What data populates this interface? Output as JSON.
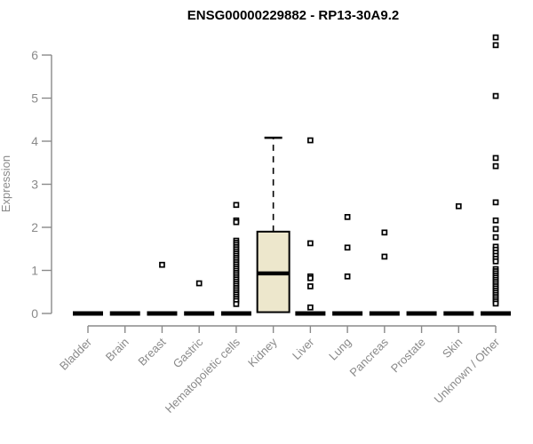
{
  "chart_data": {
    "type": "boxplot",
    "title": "ENSG00000229882 - RP13-30A9.2",
    "xlabel": "",
    "ylabel": "Expression",
    "ylim": [
      0,
      6.5
    ],
    "yticks": [
      0,
      1,
      2,
      3,
      4,
      5,
      6
    ],
    "grid": false,
    "legend": false,
    "categories": [
      "Bladder",
      "Brain",
      "Breast",
      "Gastric",
      "Hematopoietic cells",
      "Kidney",
      "Liver",
      "Lung",
      "Pancreas",
      "Prostate",
      "Skin",
      "Unknown / Other"
    ],
    "boxes": [
      {
        "category": "Bladder",
        "q1": 0,
        "median": 0,
        "q3": 0,
        "whisker_low": 0,
        "whisker_high": 0,
        "outliers": []
      },
      {
        "category": "Brain",
        "q1": 0,
        "median": 0,
        "q3": 0,
        "whisker_low": 0,
        "whisker_high": 0,
        "outliers": []
      },
      {
        "category": "Breast",
        "q1": 0,
        "median": 0,
        "q3": 0,
        "whisker_low": 0,
        "whisker_high": 0,
        "outliers": [
          1.13
        ]
      },
      {
        "category": "Gastric",
        "q1": 0,
        "median": 0,
        "q3": 0,
        "whisker_low": 0,
        "whisker_high": 0,
        "outliers": [
          0.7
        ]
      },
      {
        "category": "Hematopoietic cells",
        "q1": 0,
        "median": 0,
        "q3": 0,
        "whisker_low": 0,
        "whisker_high": 0,
        "outliers": [
          2.52,
          2.16,
          2.12,
          1.69,
          1.64,
          1.59,
          1.54,
          1.49,
          1.44,
          1.39,
          1.34,
          1.29,
          1.24,
          1.19,
          1.14,
          1.09,
          1.04,
          0.99,
          0.94,
          0.89,
          0.84,
          0.79,
          0.74,
          0.69,
          0.64,
          0.59,
          0.54,
          0.49,
          0.44,
          0.39,
          0.34,
          0.29,
          0.22
        ]
      },
      {
        "category": "Kidney",
        "q1": 0.03,
        "median": 0.93,
        "q3": 1.9,
        "whisker_low": 0.03,
        "whisker_high": 4.08,
        "outliers": []
      },
      {
        "category": "Liver",
        "q1": 0,
        "median": 0,
        "q3": 0,
        "whisker_low": 0,
        "whisker_high": 0,
        "outliers": [
          4.02,
          1.63,
          0.86,
          0.82,
          0.63,
          0.14
        ]
      },
      {
        "category": "Lung",
        "q1": 0,
        "median": 0,
        "q3": 0,
        "whisker_low": 0,
        "whisker_high": 0,
        "outliers": [
          2.24,
          1.53,
          0.86
        ]
      },
      {
        "category": "Pancreas",
        "q1": 0,
        "median": 0,
        "q3": 0,
        "whisker_low": 0,
        "whisker_high": 0,
        "outliers": [
          1.88,
          1.32
        ]
      },
      {
        "category": "Prostate",
        "q1": 0,
        "median": 0,
        "q3": 0,
        "whisker_low": 0,
        "whisker_high": 0,
        "outliers": []
      },
      {
        "category": "Skin",
        "q1": 0,
        "median": 0,
        "q3": 0,
        "whisker_low": 0,
        "whisker_high": 0,
        "outliers": [
          2.49
        ]
      },
      {
        "category": "Unknown / Other",
        "q1": 0,
        "median": 0,
        "q3": 0,
        "whisker_low": 0,
        "whisker_high": 0,
        "outliers": [
          6.41,
          6.23,
          5.05,
          3.61,
          3.42,
          2.58,
          2.16,
          1.96,
          1.77,
          1.55,
          1.48,
          1.41,
          1.34,
          1.27,
          1.21,
          1.03,
          0.98,
          0.93,
          0.88,
          0.83,
          0.78,
          0.73,
          0.68,
          0.63,
          0.58,
          0.53,
          0.48,
          0.43,
          0.38,
          0.33,
          0.28,
          0.23
        ]
      }
    ]
  },
  "colors": {
    "background": "#FFFFFF",
    "title_text": "#000000",
    "axis": "#8A8A8A",
    "axis_text": "#8A8A8A",
    "box_fill": "#EDE7CC",
    "box_stroke": "#000000",
    "median": "#000000",
    "zero_bar": "#000000",
    "outlier_fill": "#FFFFFF",
    "outlier_stroke": "#000000"
  }
}
